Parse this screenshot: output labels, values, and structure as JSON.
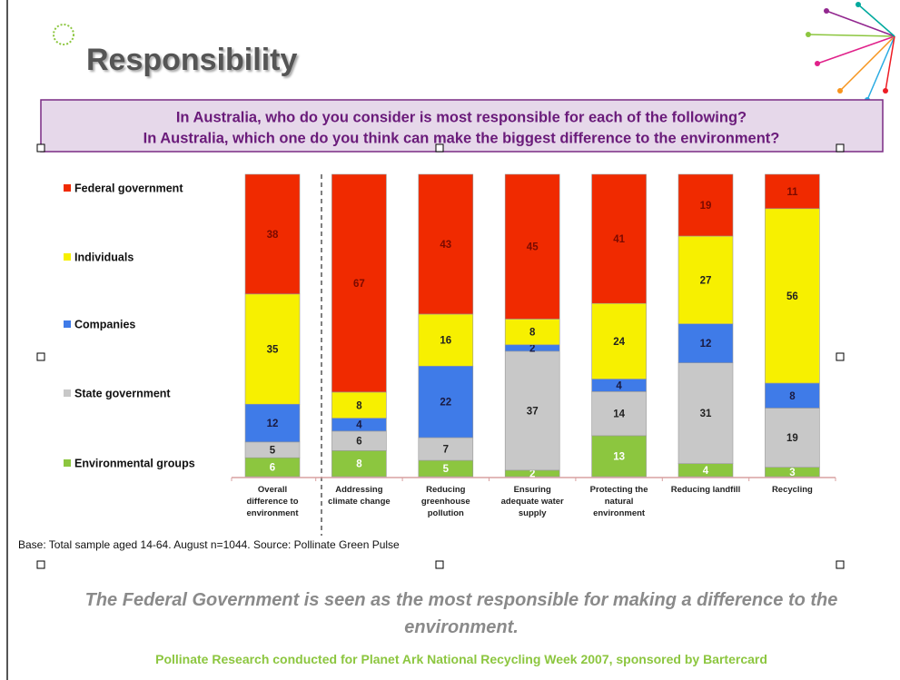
{
  "chart_data": {
    "type": "percent_stacked_bar",
    "title": "Responsibility",
    "subtitle": [
      "In Australia, who do you consider is most responsible for each of the following?",
      "In Australia, which one do you think can make the biggest difference to the environment?"
    ],
    "categories": [
      "Overall difference to environment",
      "Addressing climate change",
      "Reducing greenhouse pollution",
      "Ensuring adequate water supply",
      "Protecting the natural environment",
      "Reducing landfill",
      "Recycling"
    ],
    "series": [
      {
        "name": "Environmental groups",
        "color": "#8cc63f",
        "label_color": "#ffffff",
        "values": [
          6,
          8,
          5,
          2,
          13,
          4,
          3
        ]
      },
      {
        "name": "State government",
        "color": "#c8c8c8",
        "label_color": "#222222",
        "values": [
          5,
          6,
          7,
          37,
          14,
          31,
          19
        ]
      },
      {
        "name": "Companies",
        "color": "#3f7be8",
        "label_color": "#1a1a40",
        "values": [
          12,
          4,
          22,
          2,
          4,
          12,
          8
        ]
      },
      {
        "name": "Individuals",
        "color": "#f7f000",
        "label_color": "#222222",
        "values": [
          35,
          8,
          16,
          8,
          24,
          27,
          56
        ]
      },
      {
        "name": "Federal government",
        "color": "#f02a00",
        "label_color": "#7a0a00",
        "values": [
          38,
          67,
          43,
          45,
          41,
          19,
          11
        ]
      }
    ],
    "legend": "left",
    "note": "Base: Total sample aged 14-64. August n=1044.  Source:  Pollinate Green Pulse",
    "annotation": "The Federal Government is seen as the most responsible for making a difference to the environment.",
    "footer": "Pollinate Research conducted for Planet Ark National Recycling Week 2007, sponsored by Bartercard"
  }
}
